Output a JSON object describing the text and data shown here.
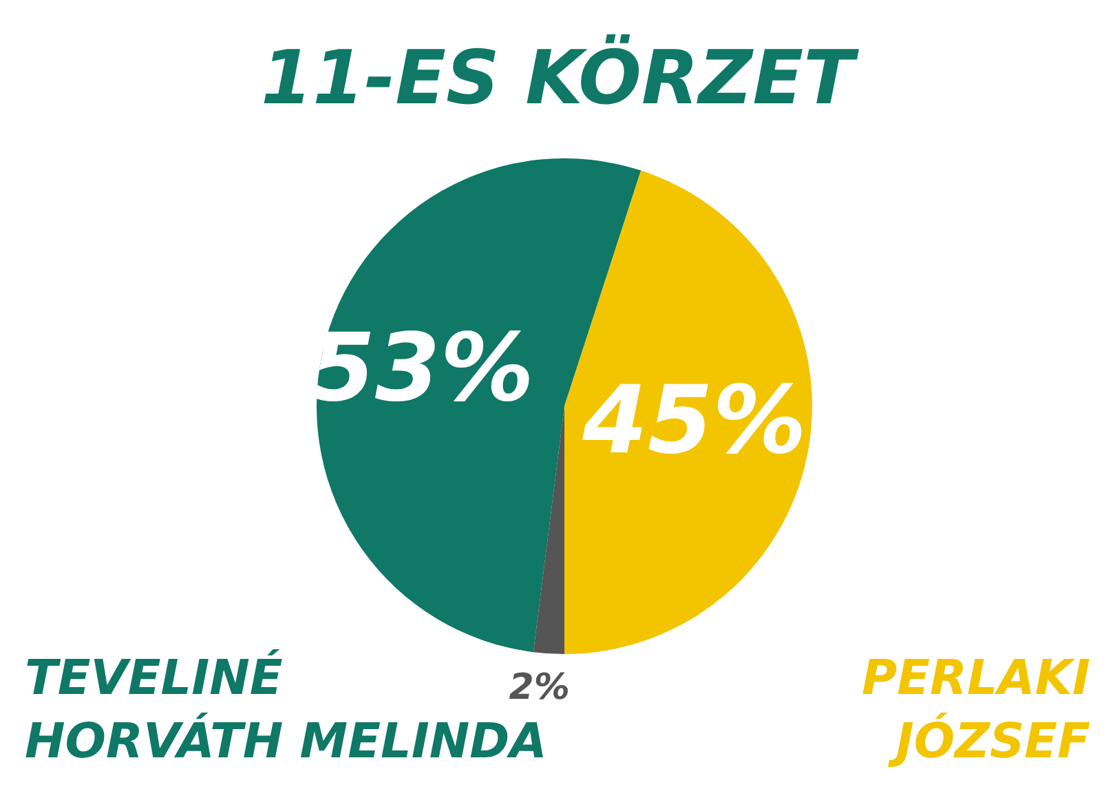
{
  "chart_data": {
    "type": "pie",
    "title": "11-ES KÖRZET",
    "categories": [
      "TEVELINÉ\nHORVÁTH MELINDA",
      null,
      "PERLAKI\nJÓZSEF"
    ],
    "values": [
      53,
      2,
      45
    ],
    "value_labels": [
      "53%",
      "2%",
      "45%"
    ],
    "colors": [
      "#0f7866",
      "#555555",
      "#f2c500"
    ]
  }
}
